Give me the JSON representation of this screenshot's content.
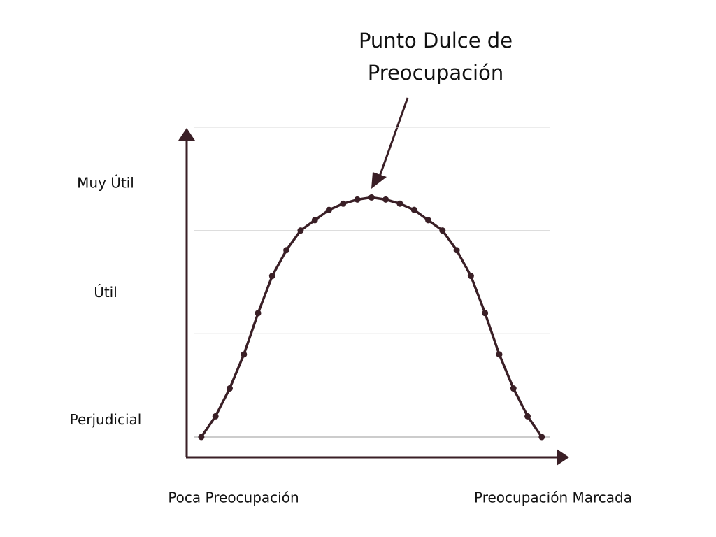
{
  "chart_data": {
    "type": "line",
    "annotation": [
      "Punto Dulce de",
      "Preocupación"
    ],
    "x": [
      0,
      1,
      2,
      3,
      4,
      5,
      6,
      7,
      8,
      9,
      10,
      11,
      12,
      13,
      14,
      15,
      16,
      17,
      18,
      19,
      20,
      21,
      22,
      23,
      24
    ],
    "values": [
      0,
      0.2,
      0.47,
      0.8,
      1.2,
      1.56,
      1.81,
      2.0,
      2.1,
      2.2,
      2.26,
      2.3,
      2.32,
      2.3,
      2.26,
      2.2,
      2.1,
      2.0,
      1.81,
      1.56,
      1.2,
      0.8,
      0.47,
      0.2,
      0
    ],
    "color": "#3a1f26",
    "xlim": [
      -1.03,
      24.55
    ],
    "ylim": [
      -0.19,
      3
    ],
    "gridlines": [
      0,
      1,
      2,
      3
    ],
    "yticks": [
      {
        "value": 0.16,
        "label": "Perjudicial"
      },
      {
        "value": 1.39,
        "label": "Útil"
      },
      {
        "value": 2.45,
        "label": "Muy Útil"
      }
    ],
    "xlabel_left": "Poca Preocupación",
    "xlabel_right": "Preocupación Marcada"
  }
}
